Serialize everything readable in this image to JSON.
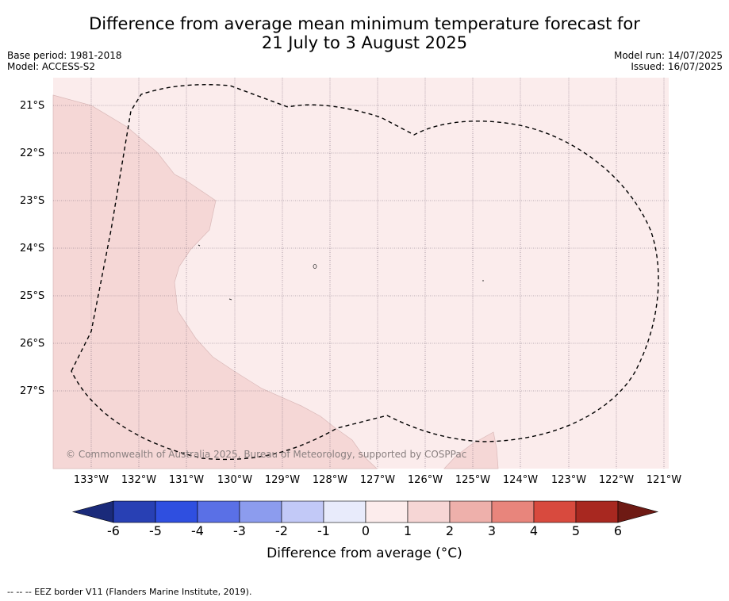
{
  "title_line1": "Difference from average mean minimum temperature forecast for",
  "title_line2": "21 July to 3 August 2025",
  "base_period": "Base period: 1981-2018",
  "model": "Model: ACCESS-S2",
  "model_run": "Model run: 14/07/2025",
  "issued": "Issued: 16/07/2025",
  "copyright": "© Commonwealth of Australia 2025, Bureau of Meteorology, supported by COSPPac",
  "lat_labels": [
    "21°S",
    "22°S",
    "23°S",
    "24°S",
    "25°S",
    "26°S",
    "27°S"
  ],
  "lon_labels": [
    "133°W",
    "132°W",
    "131°W",
    "130°W",
    "129°W",
    "128°W",
    "127°W",
    "126°W",
    "125°W",
    "124°W",
    "123°W",
    "122°W",
    "121°W"
  ],
  "colorbar": {
    "ticks": [
      "-6",
      "-5",
      "-4",
      "-3",
      "-2",
      "-1",
      "0",
      "1",
      "2",
      "3",
      "4",
      "5",
      "6"
    ],
    "colors": [
      "#1a2a7a",
      "#2840b4",
      "#2f4fe0",
      "#5a70e6",
      "#8c9cee",
      "#c2c9f7",
      "#e8ebfb",
      "#fcecec",
      "#f6d6d5",
      "#eeb0ab",
      "#e8857c",
      "#d84a3e",
      "#a82820",
      "#6e1a14"
    ],
    "label": "Difference from average (°C)"
  },
  "footnote": "-- -- -- EEZ border V11 (Flanders Marine Institute, 2019).",
  "fill_colors": {
    "background_0_1": "#fbecec",
    "region_1_2": "#f5d7d6"
  }
}
